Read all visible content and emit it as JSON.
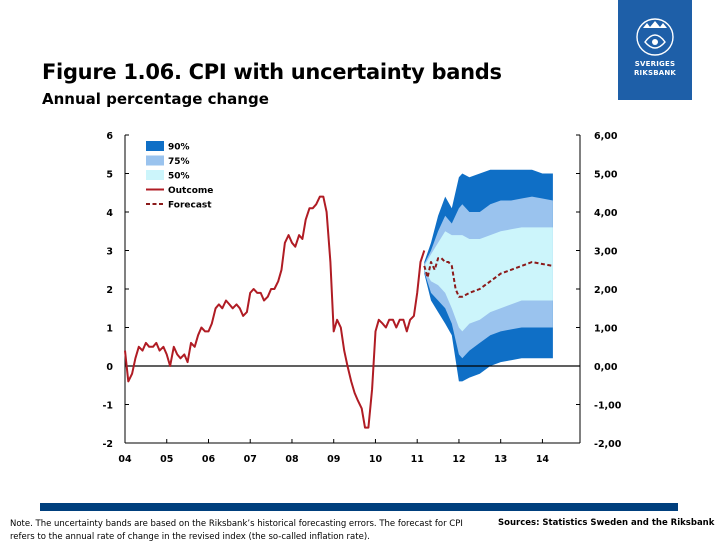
{
  "header": {
    "title": "Figure 1.06. CPI with uncertainty bands",
    "subtitle": "Annual percentage change"
  },
  "logo": {
    "line1": "SVERIGES",
    "line2": "RIKSBANK",
    "color": "#1e5fa8"
  },
  "footer": {
    "note": "Note. The uncertainty bands are based on the Riksbank’s historical forecasting errors. The forecast for CPI refers to the annual rate of change in the revised index (the so-called inflation rate).",
    "sources": "Sources: Statistics Sweden and the Riksbank",
    "rule_color": "#003f7d"
  },
  "chart_data": {
    "type": "line",
    "title": "Figure 1.06. CPI with uncertainty bands",
    "subtitle": "Annual percentage change",
    "xlabel": "",
    "ylabel": "",
    "xlim": [
      2004,
      2014.9
    ],
    "ylim": [
      -2,
      6
    ],
    "x_tick_labels": [
      "04",
      "05",
      "06",
      "07",
      "08",
      "09",
      "10",
      "11",
      "12",
      "13",
      "14"
    ],
    "x_tick_values": [
      2004,
      2005,
      2006,
      2007,
      2008,
      2009,
      2010,
      2011,
      2012,
      2013,
      2014
    ],
    "y_left_tick_labels": [
      "6",
      "5",
      "4",
      "3",
      "2",
      "1",
      "0",
      "-1",
      "-2"
    ],
    "y_right_tick_labels": [
      "6,00",
      "5,00",
      "4,00",
      "3,00",
      "2,00",
      "1,00",
      "0,00",
      "-1,00",
      "-2,00"
    ],
    "y_tick_values": [
      6,
      5,
      4,
      3,
      2,
      1,
      0,
      -1,
      -2
    ],
    "zero_line": true,
    "legend": {
      "position": "top-left",
      "entries": [
        {
          "label": "90%",
          "kind": "band",
          "color": "#0f6fc6"
        },
        {
          "label": "75%",
          "kind": "band",
          "color": "#9ac3ee"
        },
        {
          "label": "50%",
          "kind": "band",
          "color": "#ccf5fb"
        },
        {
          "label": "Outcome",
          "kind": "line",
          "color": "#b01c24"
        },
        {
          "label": "Forecast",
          "kind": "dashed",
          "color": "#8b1a1a"
        }
      ]
    },
    "series": [
      {
        "name": "Outcome",
        "color": "#b01c24",
        "style": "solid",
        "x": [
          2004.0,
          2004.08,
          2004.17,
          2004.25,
          2004.33,
          2004.42,
          2004.5,
          2004.58,
          2004.67,
          2004.75,
          2004.83,
          2004.92,
          2005.0,
          2005.08,
          2005.17,
          2005.25,
          2005.33,
          2005.42,
          2005.5,
          2005.58,
          2005.67,
          2005.75,
          2005.83,
          2005.92,
          2006.0,
          2006.08,
          2006.17,
          2006.25,
          2006.33,
          2006.42,
          2006.5,
          2006.58,
          2006.67,
          2006.75,
          2006.83,
          2006.92,
          2007.0,
          2007.08,
          2007.17,
          2007.25,
          2007.33,
          2007.42,
          2007.5,
          2007.58,
          2007.67,
          2007.75,
          2007.83,
          2007.92,
          2008.0,
          2008.08,
          2008.17,
          2008.25,
          2008.33,
          2008.42,
          2008.5,
          2008.58,
          2008.67,
          2008.75,
          2008.83,
          2008.92,
          2009.0,
          2009.08,
          2009.17,
          2009.25,
          2009.33,
          2009.42,
          2009.5,
          2009.58,
          2009.67,
          2009.75,
          2009.83,
          2009.92,
          2010.0,
          2010.08,
          2010.17,
          2010.25,
          2010.33,
          2010.42,
          2010.5,
          2010.58,
          2010.67,
          2010.75,
          2010.83,
          2010.92,
          2011.0,
          2011.08,
          2011.17
        ],
        "y": [
          0.4,
          -0.4,
          -0.2,
          0.2,
          0.5,
          0.4,
          0.6,
          0.5,
          0.5,
          0.6,
          0.4,
          0.5,
          0.3,
          0.0,
          0.5,
          0.3,
          0.2,
          0.3,
          0.1,
          0.6,
          0.5,
          0.8,
          1.0,
          0.9,
          0.9,
          1.1,
          1.5,
          1.6,
          1.5,
          1.7,
          1.6,
          1.5,
          1.6,
          1.5,
          1.3,
          1.4,
          1.9,
          2.0,
          1.9,
          1.9,
          1.7,
          1.8,
          2.0,
          2.0,
          2.2,
          2.5,
          3.2,
          3.4,
          3.2,
          3.1,
          3.4,
          3.3,
          3.8,
          4.1,
          4.1,
          4.2,
          4.4,
          4.4,
          4.0,
          2.7,
          0.9,
          1.2,
          1.0,
          0.4,
          0.0,
          -0.4,
          -0.7,
          -0.9,
          -1.1,
          -1.6,
          -1.6,
          -0.6,
          0.9,
          1.2,
          1.1,
          1.0,
          1.2,
          1.2,
          1.0,
          1.2,
          1.2,
          0.9,
          1.2,
          1.3,
          1.9,
          2.7,
          3.0
        ]
      },
      {
        "name": "Forecast",
        "color": "#8b1a1a",
        "style": "dashed",
        "x": [
          2011.17,
          2011.25,
          2011.33,
          2011.42,
          2011.5,
          2011.58,
          2011.67,
          2011.75,
          2011.83,
          2011.92,
          2012.0,
          2012.08,
          2012.25,
          2012.5,
          2012.75,
          2013.0,
          2013.25,
          2013.5,
          2013.75,
          2014.0,
          2014.25
        ],
        "y": [
          2.6,
          2.3,
          2.7,
          2.5,
          2.8,
          2.8,
          2.7,
          2.7,
          2.6,
          2.0,
          1.8,
          1.8,
          1.9,
          2.0,
          2.2,
          2.4,
          2.5,
          2.6,
          2.7,
          2.65,
          2.6
        ]
      }
    ],
    "bands": {
      "x": [
        2011.17,
        2011.33,
        2011.5,
        2011.67,
        2011.83,
        2012.0,
        2012.08,
        2012.25,
        2012.5,
        2012.75,
        2013.0,
        2013.25,
        2013.5,
        2013.75,
        2014.0,
        2014.25
      ],
      "upper_90": [
        2.7,
        3.2,
        3.9,
        4.4,
        4.1,
        4.9,
        5.0,
        4.9,
        5.0,
        5.1,
        5.1,
        5.1,
        5.1,
        5.1,
        5.0,
        5.0
      ],
      "upper_75": [
        2.65,
        3.0,
        3.5,
        3.9,
        3.7,
        4.1,
        4.2,
        4.0,
        4.0,
        4.2,
        4.3,
        4.3,
        4.35,
        4.4,
        4.35,
        4.3
      ],
      "upper_50": [
        2.6,
        2.9,
        3.2,
        3.5,
        3.4,
        3.4,
        3.4,
        3.3,
        3.3,
        3.4,
        3.5,
        3.55,
        3.6,
        3.6,
        3.6,
        3.6
      ],
      "lower_50": [
        2.5,
        2.2,
        2.1,
        1.9,
        1.5,
        1.0,
        0.9,
        1.1,
        1.2,
        1.4,
        1.5,
        1.6,
        1.7,
        1.7,
        1.7,
        1.7
      ],
      "lower_75": [
        2.45,
        1.9,
        1.7,
        1.5,
        1.1,
        0.3,
        0.2,
        0.4,
        0.6,
        0.8,
        0.9,
        0.95,
        1.0,
        1.0,
        1.0,
        1.0
      ],
      "lower_90": [
        2.4,
        1.7,
        1.4,
        1.1,
        0.8,
        -0.4,
        -0.4,
        -0.3,
        -0.2,
        0.0,
        0.1,
        0.15,
        0.2,
        0.2,
        0.2,
        0.2
      ]
    }
  }
}
